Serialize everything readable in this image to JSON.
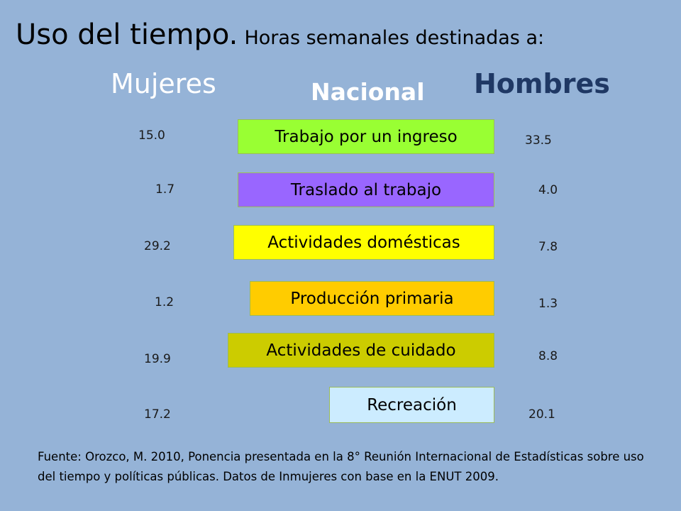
{
  "title": {
    "main": "Uso del tiempo.",
    "sub": "Horas semanales destinadas a:"
  },
  "headers": {
    "mujeres": "Mujeres",
    "nacional": "Nacional",
    "hombres": "Hombres"
  },
  "rows": [
    {
      "label": "Trabajo por un ingreso",
      "mujeres": "15.0",
      "hombres": "33.5",
      "color": "#99ff33"
    },
    {
      "label": "Traslado al trabajo",
      "mujeres": "1.7",
      "hombres": "4.0",
      "color": "#9966ff"
    },
    {
      "label": "Actividades domésticas",
      "mujeres": "29.2",
      "hombres": "7.8",
      "color": "#ffff00"
    },
    {
      "label": "Producción primaria",
      "mujeres": "1.2",
      "hombres": "1.3",
      "color": "#ffcc00"
    },
    {
      "label": "Actividades de cuidado",
      "mujeres": "19.9",
      "hombres": "8.8",
      "color": "#cccc00"
    },
    {
      "label": "Recreación",
      "mujeres": "17.2",
      "hombres": "20.1",
      "color": "#ccecff"
    }
  ],
  "source": "Fuente: Orozco, M. 2010, Ponencia presentada en la 8° Reunión Internacional de Estadísticas sobre uso del tiempo y políticas públicas. Datos de Inmujeres con base en la ENUT 2009."
}
